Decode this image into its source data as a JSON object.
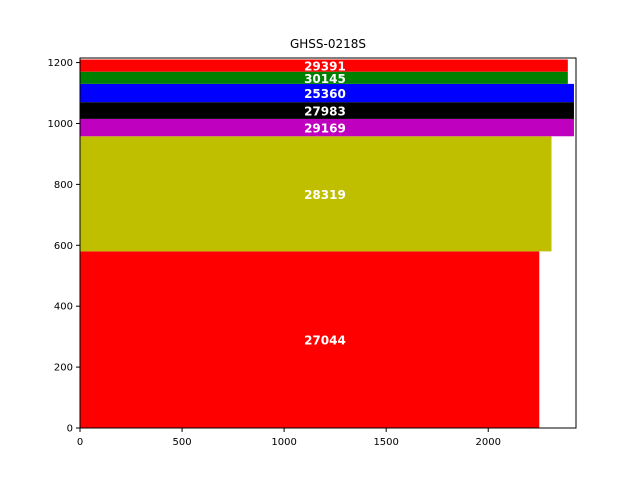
{
  "chart_data": {
    "type": "bar",
    "orientation": "horizontal-stacked-variable-height",
    "title": "GHSS-0218S",
    "xlabel": "",
    "ylabel": "",
    "xlim": [
      0,
      2430
    ],
    "ylim": [
      0,
      1215
    ],
    "xticks": [
      0,
      500,
      1000,
      1500,
      2000
    ],
    "yticks": [
      0,
      200,
      400,
      600,
      800,
      1000,
      1200
    ],
    "grid": false,
    "bars": [
      {
        "label": "27044",
        "value": 2250,
        "y_start": 0,
        "y_end": 580,
        "color": "#ff0000"
      },
      {
        "label": "28319",
        "value": 2310,
        "y_start": 580,
        "y_end": 958,
        "color": "#bfbf00"
      },
      {
        "label": "29169",
        "value": 2420,
        "y_start": 958,
        "y_end": 1015,
        "color": "#bf00bf"
      },
      {
        "label": "27983",
        "value": 2420,
        "y_start": 1015,
        "y_end": 1070,
        "color": "#000000"
      },
      {
        "label": "25360",
        "value": 2420,
        "y_start": 1070,
        "y_end": 1130,
        "color": "#0000ff"
      },
      {
        "label": "30145",
        "value": 2390,
        "y_start": 1130,
        "y_end": 1170,
        "color": "#008000"
      },
      {
        "label": "29391",
        "value": 2390,
        "y_start": 1170,
        "y_end": 1210,
        "color": "#ff0000"
      }
    ]
  }
}
